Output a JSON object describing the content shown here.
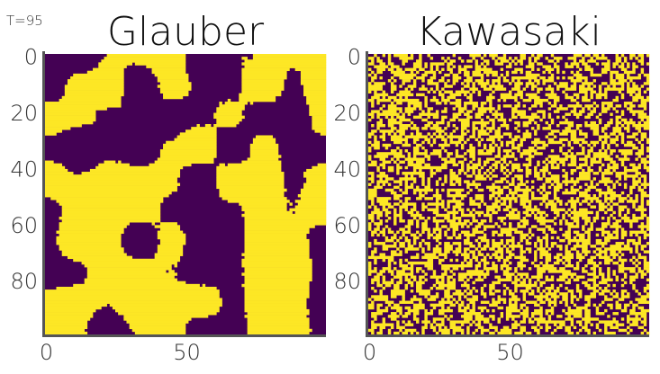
{
  "figure": {
    "temperature_label": "T=95"
  },
  "colors": {
    "low": "#440154",
    "high": "#fde725",
    "axis": "#555555",
    "text": "#111111"
  },
  "chart_data": [
    {
      "type": "heatmap",
      "title": "Glauber",
      "grid_size": 100,
      "xlim": [
        0,
        99
      ],
      "ylim": [
        0,
        99
      ],
      "x_ticks": [
        0,
        50
      ],
      "y_ticks": [
        0,
        20,
        40,
        60,
        80
      ],
      "values": "binary lattice (0/1) showing coarsened domains",
      "domains": "large-smooth"
    },
    {
      "type": "heatmap",
      "title": "Kawasaki",
      "grid_size": 100,
      "xlim": [
        0,
        99
      ],
      "ylim": [
        0,
        99
      ],
      "x_ticks": [
        0,
        50
      ],
      "y_ticks": [
        0,
        20,
        40,
        60,
        80
      ],
      "values": "binary lattice (0/1) with fine random mixing",
      "domains": "fine-random"
    }
  ]
}
